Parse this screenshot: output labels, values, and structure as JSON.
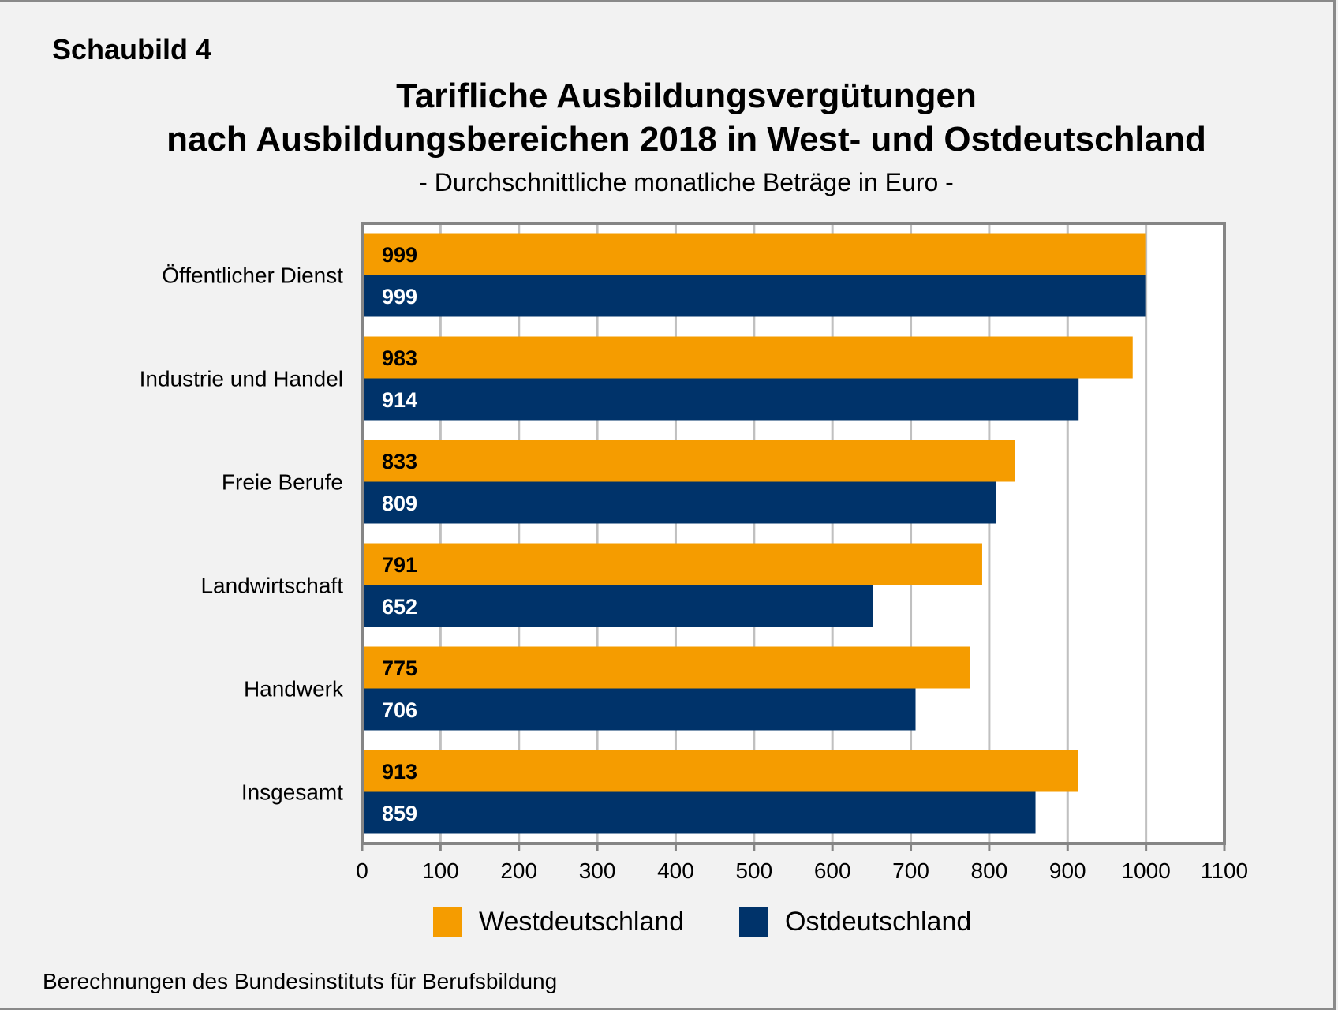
{
  "figure_label": "Schaubild 4",
  "source_note": "Berechnungen des Bundesinstituts für Berufsbildung",
  "colors": {
    "west": "#f59c00",
    "east": "#00336a",
    "background": "#f2f2f2",
    "plot_background": "#ffffff",
    "gridline": "#c0c0c0",
    "axis": "#858585"
  },
  "chart_data": {
    "type": "bar",
    "orientation": "horizontal",
    "title": "Tarifliche Ausbildungsvergütungen nach Ausbildungsbereichen 2018 in West- und Ostdeutschland",
    "title_lines": [
      "Tarifliche Ausbildungsvergütungen",
      "nach Ausbildungsbereichen 2018 in West- und Ostdeutschland"
    ],
    "subtitle": "- Durchschnittliche monatliche Beträge in Euro -",
    "xlabel": "",
    "ylabel": "",
    "categories": [
      "Öffentlicher Dienst",
      "Industrie und Handel",
      "Freie Berufe",
      "Landwirtschaft",
      "Handwerk",
      "Insgesamt"
    ],
    "series": [
      {
        "name": "Westdeutschland",
        "color": "#f59c00",
        "label_color": "#000000",
        "values": [
          999,
          983,
          833,
          791,
          775,
          913
        ]
      },
      {
        "name": "Ostdeutschland",
        "color": "#00336a",
        "label_color": "#ffffff",
        "values": [
          999,
          914,
          809,
          652,
          706,
          859
        ]
      }
    ],
    "xlim": [
      0,
      1100
    ],
    "xticks": [
      0,
      100,
      200,
      300,
      400,
      500,
      600,
      700,
      800,
      900,
      1000,
      1100
    ],
    "grid": "vertical",
    "data_labels": "inside-base",
    "legend": "bottom-center"
  }
}
